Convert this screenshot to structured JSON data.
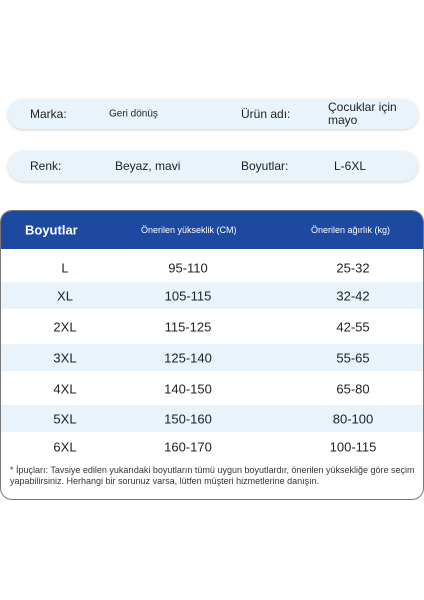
{
  "info": {
    "brand_label": "Marka:",
    "brand_value": "Geri dönüş",
    "product_label": "Ürün adı:",
    "product_value_line1": "Çocuklar için",
    "product_value_line2": "mayo",
    "color_label": "Renk:",
    "color_value": "Beyaz, mavi",
    "sizes_label": "Boyutlar:",
    "sizes_value": "L-6XL"
  },
  "table": {
    "headers": [
      "Boyutlar",
      "Önerilen yükseklik (CM)",
      "Önerilen ağırlık (kg)"
    ],
    "rows": [
      [
        "L",
        "95-110",
        "25-32"
      ],
      [
        "XL",
        "105-115",
        "32-42"
      ],
      [
        "2XL",
        "115-125",
        "42-55"
      ],
      [
        "3XL",
        "125-140",
        "55-65"
      ],
      [
        "4XL",
        "140-150",
        "65-80"
      ],
      [
        "5XL",
        "150-160",
        "80-100"
      ],
      [
        "6XL",
        "160-170",
        "100-115"
      ]
    ]
  },
  "note": "* İpuçları: Tavsiye edilen yukarıdaki boyutların tümü uygun boyutlardır, önerilen yüksekliğe göre seçim yapabilirsiniz. Herhangi bir sorunuz varsa, lütfen müşteri hizmetlerine danışın.",
  "colors": {
    "header_bg": "#1d49a1",
    "row_shade": "#e8f3fb",
    "pill_bg": "#e9f3fb"
  }
}
